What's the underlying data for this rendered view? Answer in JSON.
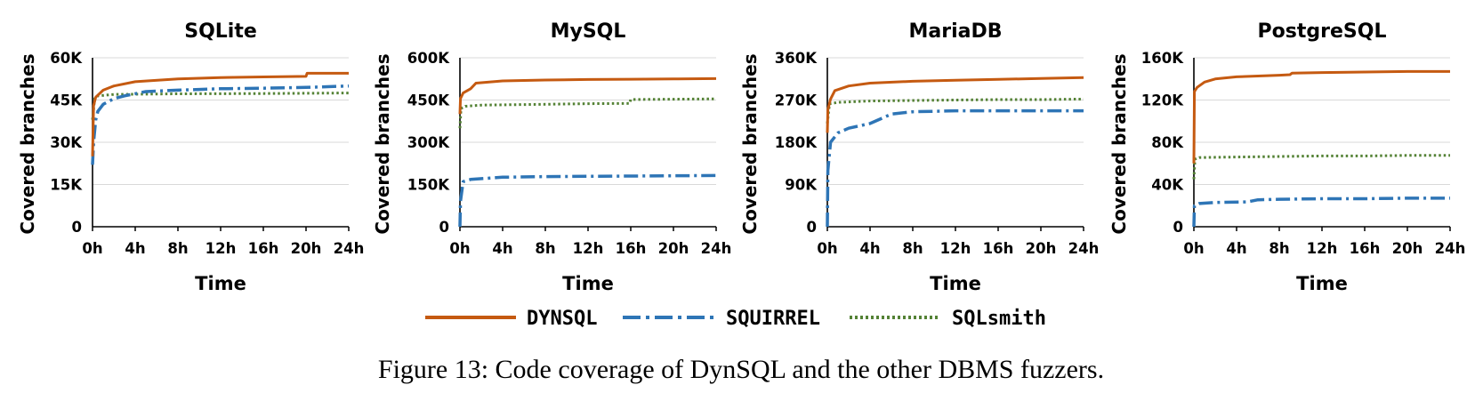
{
  "figure_caption": "Figure 13: Code coverage of DynSQL and the other DBMS fuzzers.",
  "legend": [
    "DYNSQL",
    "SQUIRREL",
    "SQLsmith"
  ],
  "series_colors": {
    "DYNSQL": "#c55a11",
    "SQUIRREL": "#2e75b6",
    "SQLsmith": "#548235"
  },
  "series_styles": {
    "DYNSQL": "solid",
    "SQUIRREL": "dash-dot",
    "SQLsmith": "dotted"
  },
  "chart_data": [
    {
      "type": "line",
      "title": "SQLite",
      "xlabel": "Time",
      "ylabel": "Covered branches",
      "x_ticks": [
        "0h",
        "4h",
        "8h",
        "12h",
        "16h",
        "20h",
        "24h"
      ],
      "y_ticks": [
        "0",
        "15K",
        "30K",
        "45K",
        "60K"
      ],
      "xlim": [
        0,
        24
      ],
      "ylim": [
        0,
        60000
      ],
      "grid": "horizontal",
      "series": [
        {
          "name": "DYNSQL",
          "x": [
            0,
            0.1,
            0.3,
            1,
            2,
            4,
            8,
            12,
            16,
            20,
            20.1,
            24
          ],
          "y": [
            25000,
            43000,
            46000,
            48500,
            50000,
            51500,
            52500,
            53000,
            53200,
            53400,
            54500,
            54500
          ]
        },
        {
          "name": "SQUIRREL",
          "x": [
            0,
            0.1,
            0.3,
            0.5,
            1,
            2,
            3,
            5,
            8,
            12,
            16,
            20,
            24
          ],
          "y": [
            22000,
            30000,
            38000,
            41000,
            43500,
            45500,
            46500,
            48000,
            48500,
            49000,
            49200,
            49500,
            50000
          ]
        },
        {
          "name": "SQLsmith",
          "x": [
            0,
            0.2,
            0.5,
            2,
            8,
            16,
            24
          ],
          "y": [
            38000,
            45500,
            46500,
            47000,
            47200,
            47300,
            47500
          ]
        }
      ]
    },
    {
      "type": "line",
      "title": "MySQL",
      "xlabel": "Time",
      "ylabel": "Covered branches",
      "x_ticks": [
        "0h",
        "4h",
        "8h",
        "12h",
        "16h",
        "20h",
        "24h"
      ],
      "y_ticks": [
        "0",
        "150K",
        "300K",
        "450K",
        "600K"
      ],
      "xlim": [
        0,
        24
      ],
      "ylim": [
        0,
        600000
      ],
      "grid": "horizontal",
      "series": [
        {
          "name": "DYNSQL",
          "x": [
            0,
            0.05,
            0.3,
            1,
            1.5,
            4,
            8,
            12,
            16,
            20,
            24
          ],
          "y": [
            400000,
            455000,
            475000,
            490000,
            510000,
            518000,
            521000,
            523000,
            524000,
            525000,
            526000
          ]
        },
        {
          "name": "SQUIRREL",
          "x": [
            0,
            0.05,
            0.3,
            1,
            4,
            8,
            12,
            16,
            20,
            24
          ],
          "y": [
            0,
            90000,
            160000,
            168000,
            176000,
            178000,
            179000,
            180000,
            181000,
            182000
          ]
        },
        {
          "name": "SQLsmith",
          "x": [
            0,
            0.1,
            0.5,
            2,
            8,
            12,
            15.9,
            16,
            20,
            24
          ],
          "y": [
            350000,
            420000,
            428000,
            432000,
            435000,
            437000,
            438000,
            452000,
            453000,
            454000
          ]
        }
      ]
    },
    {
      "type": "line",
      "title": "MariaDB",
      "xlabel": "Time",
      "ylabel": "Covered branches",
      "x_ticks": [
        "0h",
        "4h",
        "8h",
        "12h",
        "16h",
        "20h",
        "24h"
      ],
      "y_ticks": [
        "0",
        "90K",
        "180K",
        "270K",
        "360K"
      ],
      "xlim": [
        0,
        24
      ],
      "ylim": [
        0,
        360000
      ],
      "grid": "horizontal",
      "series": [
        {
          "name": "DYNSQL",
          "x": [
            0,
            0.05,
            0.3,
            0.7,
            2,
            4,
            8,
            12,
            16,
            20,
            24
          ],
          "y": [
            200000,
            250000,
            272000,
            290000,
            300000,
            306000,
            310000,
            312000,
            314000,
            316000,
            318000
          ]
        },
        {
          "name": "SQUIRREL",
          "x": [
            0,
            0.05,
            0.3,
            1,
            2,
            4,
            5,
            6,
            8,
            12,
            16,
            20,
            24
          ],
          "y": [
            0,
            120000,
            180000,
            200000,
            210000,
            220000,
            230000,
            240000,
            245000,
            247000,
            247000,
            247000,
            247000
          ]
        },
        {
          "name": "SQLsmith",
          "x": [
            0,
            0.2,
            1,
            4,
            8,
            12,
            16,
            20,
            24
          ],
          "y": [
            220000,
            262000,
            265000,
            268000,
            269000,
            270000,
            271000,
            271000,
            272000
          ]
        }
      ]
    },
    {
      "type": "line",
      "title": "PostgreSQL",
      "xlabel": "Time",
      "ylabel": "Covered branches",
      "x_ticks": [
        "0h",
        "4h",
        "8h",
        "12h",
        "16h",
        "20h",
        "24h"
      ],
      "y_ticks": [
        "0",
        "40K",
        "80K",
        "120K",
        "160K"
      ],
      "xlim": [
        0,
        24
      ],
      "ylim": [
        0,
        160000
      ],
      "grid": "horizontal",
      "series": [
        {
          "name": "DYNSQL",
          "x": [
            0,
            0.05,
            0.3,
            1,
            2,
            4,
            8,
            9,
            9.2,
            12,
            16,
            20,
            24
          ],
          "y": [
            60000,
            128000,
            132000,
            137000,
            140000,
            142000,
            143500,
            144000,
            145500,
            146000,
            146500,
            147000,
            147000
          ]
        },
        {
          "name": "SQUIRREL",
          "x": [
            0,
            0.05,
            0.5,
            2,
            5,
            6,
            8,
            12,
            16,
            20,
            24
          ],
          "y": [
            0,
            20000,
            22000,
            23000,
            23500,
            25500,
            26000,
            26500,
            26500,
            27000,
            27000
          ]
        },
        {
          "name": "SQLsmith",
          "x": [
            0,
            0.1,
            0.5,
            4,
            8,
            12,
            16,
            20,
            24
          ],
          "y": [
            45000,
            64000,
            65500,
            66000,
            66500,
            67000,
            67000,
            67500,
            67500
          ]
        }
      ]
    }
  ]
}
